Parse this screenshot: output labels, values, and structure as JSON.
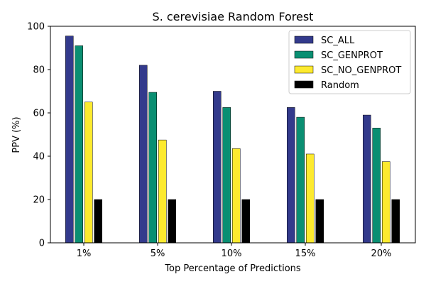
{
  "chart_data": {
    "type": "bar",
    "title": "S. cerevisiae Random Forest",
    "xlabel": "Top Percentage of Predictions",
    "ylabel": "PPV (%)",
    "ylim": [
      0,
      100
    ],
    "yticks": [
      0,
      20,
      40,
      60,
      80,
      100
    ],
    "grid": false,
    "legend_position": "top-right",
    "categories": [
      "1%",
      "5%",
      "10%",
      "15%",
      "20%"
    ],
    "series": [
      {
        "name": "SC_ALL",
        "color": "#333a8c",
        "values": [
          95.5,
          82,
          70,
          62.5,
          59
        ]
      },
      {
        "name": "SC_GENPROT",
        "color": "#0a8f72",
        "values": [
          91,
          69.5,
          62.5,
          58,
          53
        ]
      },
      {
        "name": "SC_NO_GENPROT",
        "color": "#fdea2f",
        "values": [
          65,
          47.5,
          43.5,
          41,
          37.5
        ]
      },
      {
        "name": "Random",
        "color": "#000000",
        "values": [
          20,
          20,
          20,
          20,
          20
        ]
      }
    ]
  }
}
